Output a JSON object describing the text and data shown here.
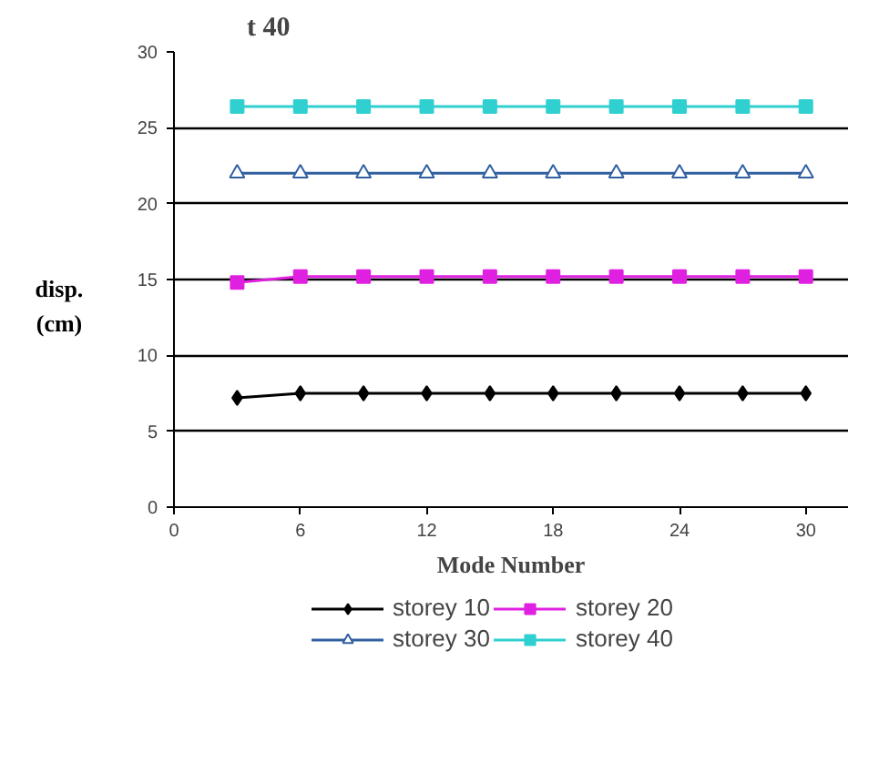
{
  "chart_data": {
    "type": "line",
    "title": "t 40",
    "xlabel": "Mode Number",
    "ylabel": "disp. (cm)",
    "x": [
      3,
      6,
      9,
      12,
      15,
      18,
      21,
      24,
      27,
      30
    ],
    "series": [
      {
        "name": "storey 10",
        "color": "#000000",
        "marker": "diamond",
        "values": [
          7.2,
          7.5,
          7.5,
          7.5,
          7.5,
          7.5,
          7.5,
          7.5,
          7.5,
          7.5
        ]
      },
      {
        "name": "storey 20",
        "color": "#e020e0",
        "marker": "square",
        "values": [
          14.8,
          15.2,
          15.2,
          15.2,
          15.2,
          15.2,
          15.2,
          15.2,
          15.2,
          15.2
        ]
      },
      {
        "name": "storey 30",
        "color": "#3060a0",
        "marker": "triangle",
        "values": [
          22,
          22,
          22,
          22,
          22,
          22,
          22,
          22,
          22,
          22
        ]
      },
      {
        "name": "storey 40",
        "color": "#30d0d0",
        "marker": "square",
        "values": [
          26.4,
          26.4,
          26.4,
          26.4,
          26.4,
          26.4,
          26.4,
          26.4,
          26.4,
          26.4
        ]
      }
    ],
    "xlim": [
      0,
      32
    ],
    "ylim": [
      0,
      30
    ],
    "xticks": [
      0,
      6,
      12,
      18,
      24,
      30
    ],
    "yticks": [
      0,
      5,
      10,
      15,
      20,
      25,
      30
    ],
    "grid": "y",
    "legend": "bottom",
    "line_style": "solid"
  }
}
